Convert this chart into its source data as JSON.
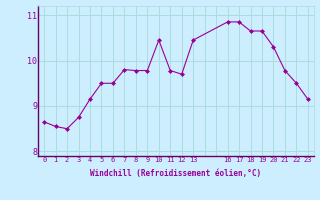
{
  "x": [
    0,
    1,
    2,
    3,
    4,
    5,
    6,
    7,
    8,
    9,
    10,
    11,
    12,
    13,
    16,
    17,
    18,
    19,
    20,
    21,
    22,
    23
  ],
  "y": [
    8.65,
    8.55,
    8.5,
    8.75,
    9.15,
    9.5,
    9.5,
    9.8,
    9.78,
    9.78,
    10.45,
    9.78,
    9.7,
    10.45,
    10.85,
    10.85,
    10.65,
    10.65,
    10.3,
    9.78,
    9.5,
    9.15
  ],
  "line_color": "#990099",
  "marker": "D",
  "marker_size": 2.0,
  "bg_color": "#cceeff",
  "grid_color": "#aadddd",
  "xlabel": "Windchill (Refroidissement éolien,°C)",
  "xlabel_color": "#990099",
  "tick_color": "#990099",
  "xlim": [
    -0.5,
    23.5
  ],
  "ylim": [
    7.9,
    11.2
  ],
  "yticks": [
    8,
    9,
    10,
    11
  ],
  "xtick_labels": [
    "0",
    "1",
    "2",
    "3",
    "4",
    "5",
    "6",
    "7",
    "8",
    "9",
    "10",
    "11",
    "12",
    "13",
    "",
    "",
    "16",
    "17",
    "18",
    "19",
    "20",
    "21",
    "22",
    "23"
  ],
  "xtick_positions": [
    0,
    1,
    2,
    3,
    4,
    5,
    6,
    7,
    8,
    9,
    10,
    11,
    12,
    13,
    14,
    15,
    16,
    17,
    18,
    19,
    20,
    21,
    22,
    23
  ]
}
